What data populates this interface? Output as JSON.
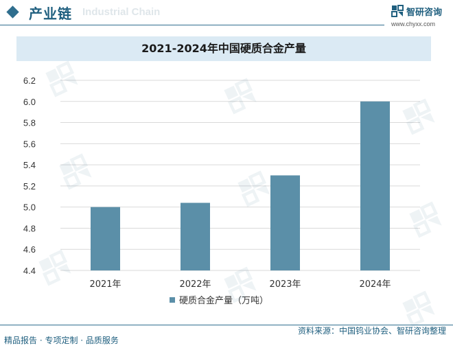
{
  "header": {
    "section_title": "产业链",
    "section_subtitle": "Industrial Chain",
    "brand_name": "智研咨询",
    "brand_url": "www.chyxx.com"
  },
  "colors": {
    "accent": "#2f6e8e",
    "bar": "#5b8fa8",
    "title_bg": "#dbeaf4"
  },
  "chart_data": {
    "type": "bar",
    "title": "2021-2024年中国硬质合金产量",
    "categories": [
      "2021年",
      "2022年",
      "2023年",
      "2024年"
    ],
    "series": [
      {
        "name": "硬质合金产量（万吨）",
        "values": [
          5.0,
          5.04,
          5.3,
          6.0
        ]
      }
    ],
    "ylim": [
      4.4,
      6.2
    ],
    "yticks": [
      "4.4",
      "4.6",
      "4.8",
      "5.0",
      "5.2",
      "5.4",
      "5.6",
      "5.8",
      "6.0",
      "6.2"
    ],
    "grid": true,
    "legend": "bottom"
  },
  "footer": {
    "source": "资料来源：中国钨业协会、智研咨询整理",
    "service": "精品报告 · 专项定制 · 品质服务"
  }
}
